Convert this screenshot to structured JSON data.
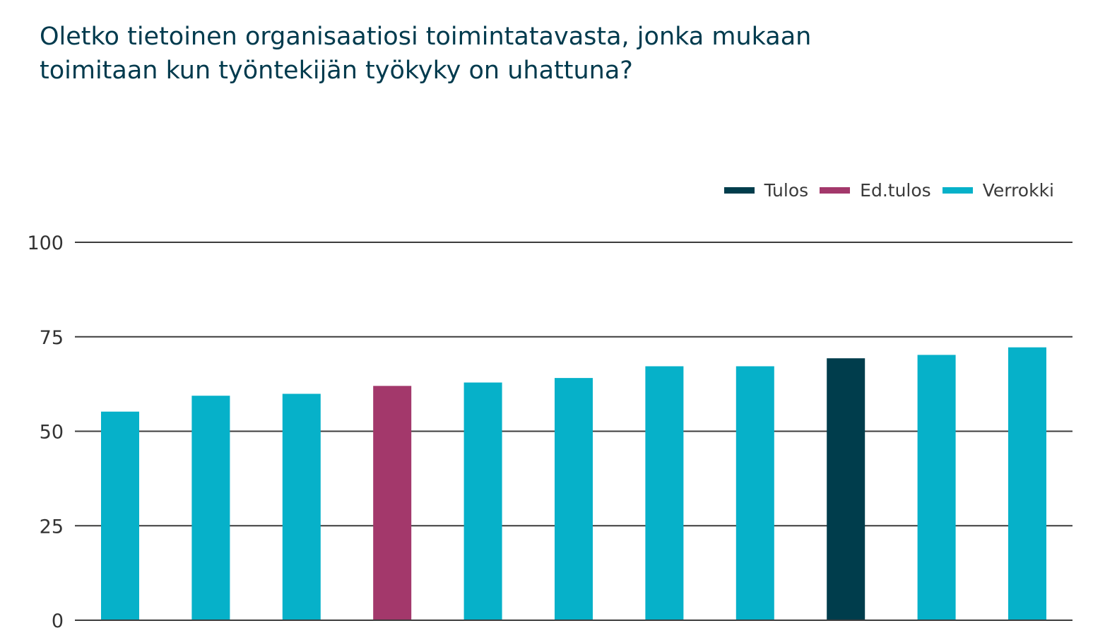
{
  "chart_data": {
    "type": "bar",
    "title_lines": [
      "Oletko tietoinen organisaatiosi toimintatavasta, jonka mukaan",
      "toimitaan kun työntekijän työkyky on uhattuna?"
    ],
    "xlabel": "",
    "ylabel": "",
    "ylim": [
      0,
      100
    ],
    "yticks": [
      "0",
      "25",
      "50",
      "75",
      "100"
    ],
    "grid": true,
    "legend_position": "top-right",
    "legend": [
      {
        "label": "Tulos",
        "color": "#003d4c"
      },
      {
        "label": "Ed.tulos",
        "color": "#a3386b"
      },
      {
        "label": "Verrokki",
        "color": "#06b1c9"
      }
    ],
    "bars": [
      {
        "value": 55.2,
        "series": "Verrokki"
      },
      {
        "value": 59.4,
        "series": "Verrokki"
      },
      {
        "value": 59.9,
        "series": "Verrokki"
      },
      {
        "value": 62.0,
        "series": "Ed.tulos"
      },
      {
        "value": 62.9,
        "series": "Verrokki"
      },
      {
        "value": 64.1,
        "series": "Verrokki"
      },
      {
        "value": 67.2,
        "series": "Verrokki"
      },
      {
        "value": 67.2,
        "series": "Verrokki"
      },
      {
        "value": 69.3,
        "series": "Tulos"
      },
      {
        "value": 70.2,
        "series": "Verrokki"
      },
      {
        "value": 72.2,
        "series": "Verrokki"
      }
    ]
  }
}
